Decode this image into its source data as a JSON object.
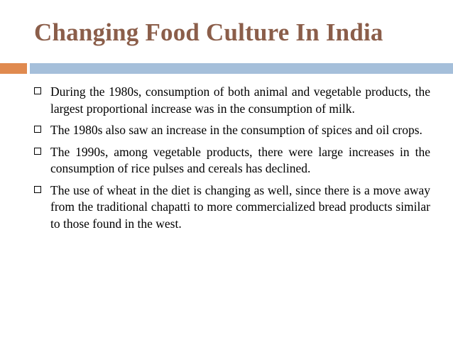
{
  "slide": {
    "title": "Changing Food Culture In India",
    "colors": {
      "title": "#8B5E4A",
      "accent_bar": "#E08A4F",
      "rule_bar": "#A5BFDA",
      "text": "#000000"
    },
    "bullet_icon": "hollow-square",
    "bullets": [
      {
        "text": "During the 1980s, consumption of both animal and vegetable products, the largest proportional increase was in the consumption of milk."
      },
      {
        "text": "The 1980s also saw an increase in the consumption of spices and oil crops."
      },
      {
        "text": "The 1990s, among vegetable products, there were large increases in the consumption of rice pulses and cereals has declined."
      },
      {
        "text": "The use of wheat in the diet is changing as well, since there is a move away from the traditional chapatti to more commercialized bread products similar to those found in the west."
      }
    ]
  }
}
